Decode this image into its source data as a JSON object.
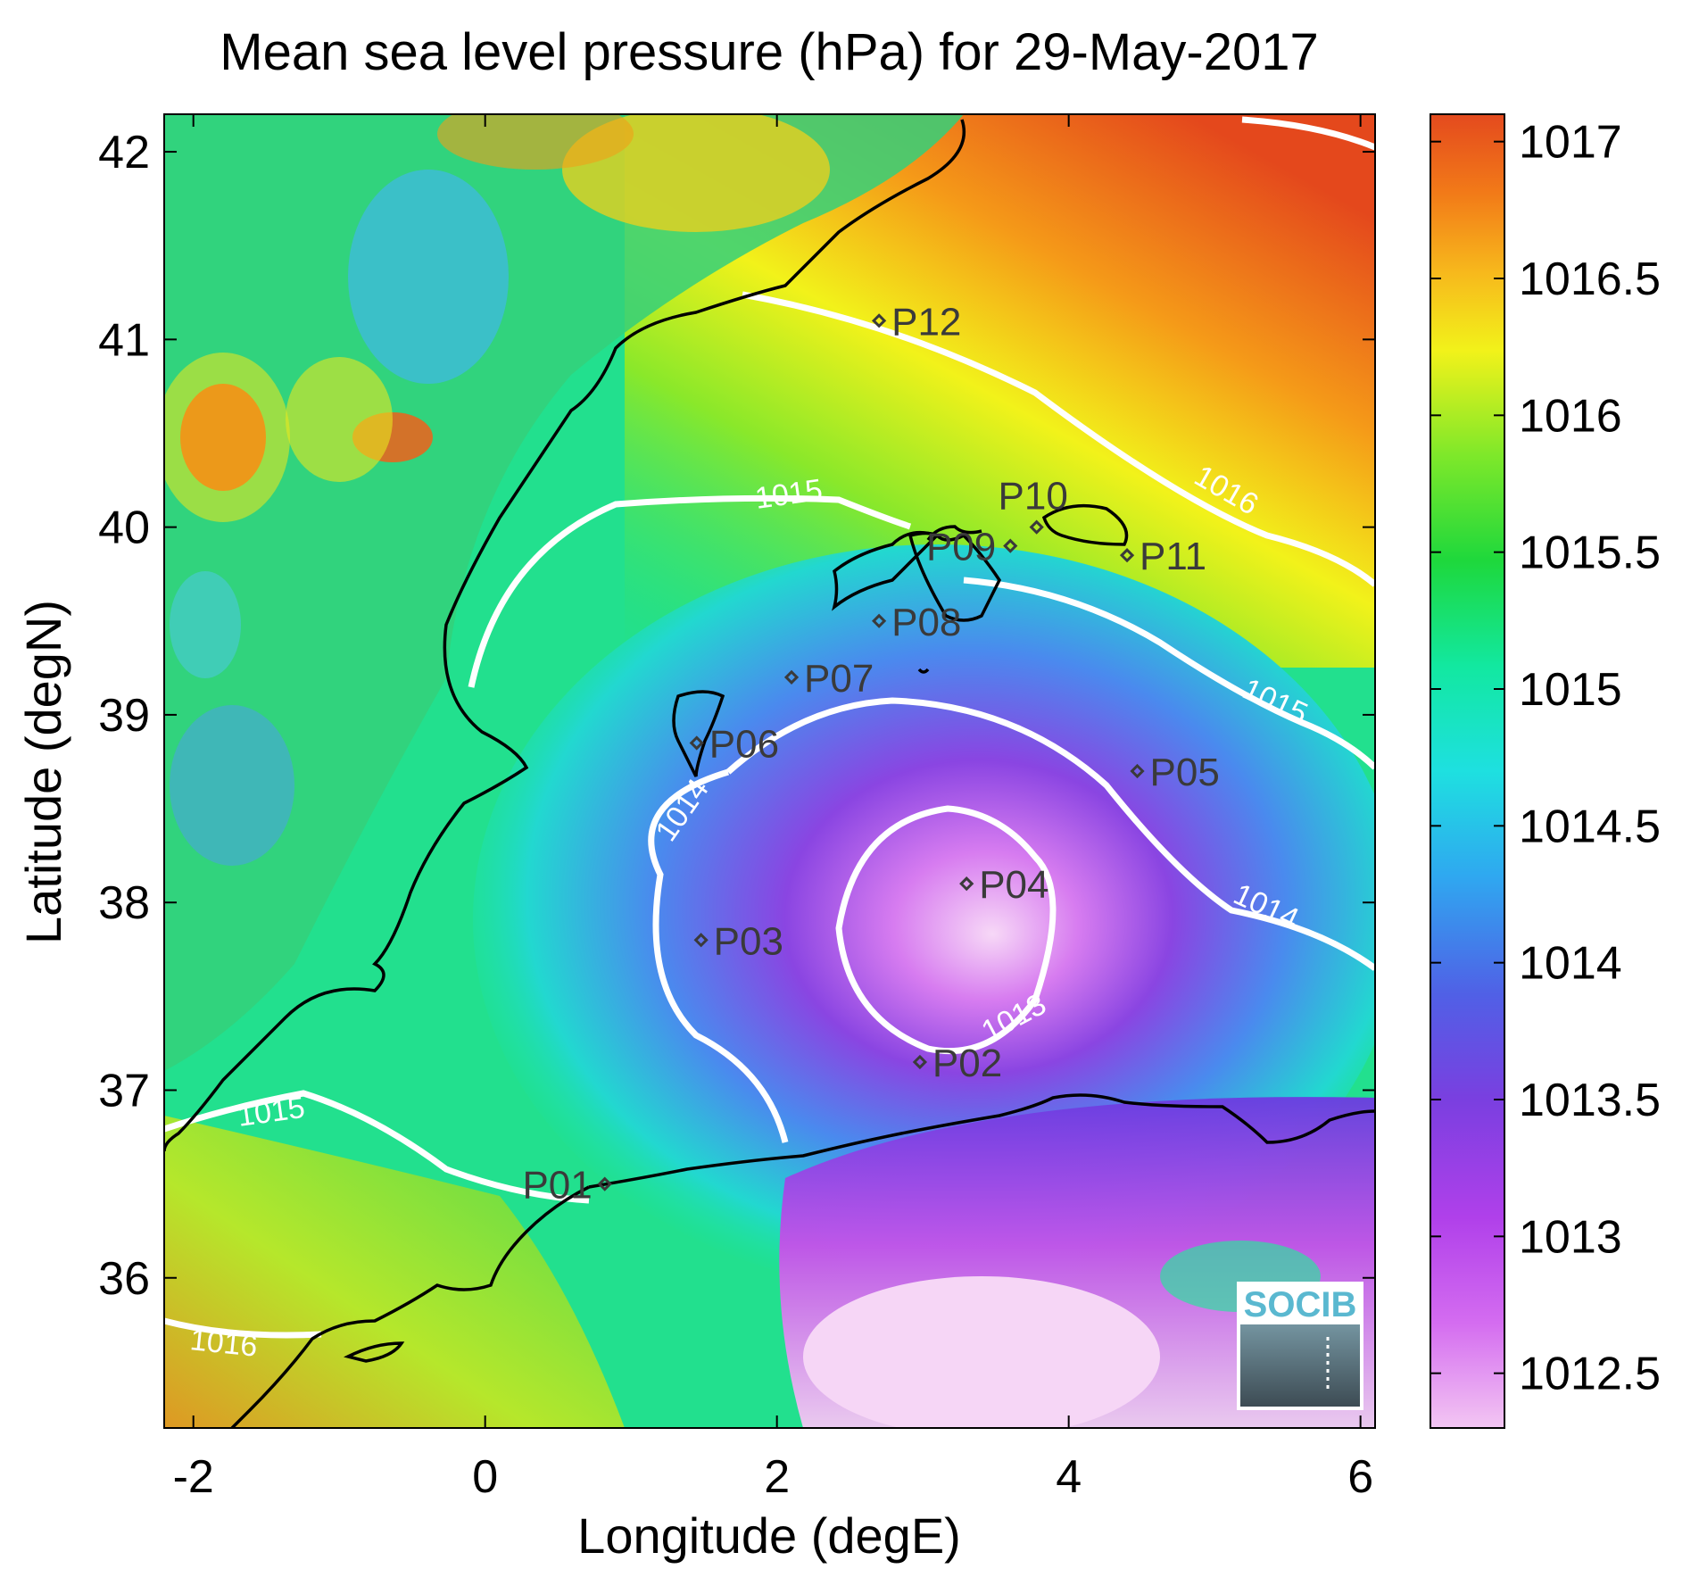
{
  "title": "Mean sea level pressure (hPa) for 29-May-2017",
  "xlabel": "Longitude (degE)",
  "ylabel": "Latitude (degN)",
  "logo_text": "SOCIB",
  "map": {
    "lon_range": [
      -2.2,
      6.1
    ],
    "lat_range": [
      35.2,
      42.2
    ],
    "x_ticks": [
      {
        "value": -2,
        "label": "-2"
      },
      {
        "value": 0,
        "label": "0"
      },
      {
        "value": 2,
        "label": "2"
      },
      {
        "value": 4,
        "label": "4"
      },
      {
        "value": 6,
        "label": "6"
      }
    ],
    "y_ticks": [
      {
        "value": 36,
        "label": "36"
      },
      {
        "value": 37,
        "label": "37"
      },
      {
        "value": 38,
        "label": "38"
      },
      {
        "value": 39,
        "label": "39"
      },
      {
        "value": 40,
        "label": "40"
      },
      {
        "value": 41,
        "label": "41"
      },
      {
        "value": 42,
        "label": "42"
      }
    ],
    "pressure_min_center": {
      "lon": 3.1,
      "lat": 37.8,
      "value": 1012.5
    },
    "pressure_high_corner": "north-east"
  },
  "colorbar": {
    "range": [
      1012.3,
      1017.1
    ],
    "ticks": [
      "1012.5",
      "1013",
      "1013.5",
      "1014",
      "1014.5",
      "1015",
      "1015.5",
      "1016",
      "1016.5",
      "1017"
    ],
    "colors": [
      "#f3c6f3",
      "#c84fe8",
      "#7a3fe0",
      "#4a6ee8",
      "#25c8f0",
      "#14e6b0",
      "#1ed83c",
      "#7ee82a",
      "#f2f21a",
      "#f7b81c",
      "#f58a18",
      "#ee5a16",
      "#e64a1e"
    ]
  },
  "contour_labels": [
    "1013",
    "1014",
    "1014",
    "1015",
    "1015",
    "1015",
    "1016",
    "1016"
  ],
  "stations": [
    {
      "name": "P01",
      "lon": 0.82,
      "lat": 36.5
    },
    {
      "name": "P02",
      "lon": 2.98,
      "lat": 37.15
    },
    {
      "name": "P03",
      "lon": 1.48,
      "lat": 37.8
    },
    {
      "name": "P04",
      "lon": 3.3,
      "lat": 38.1
    },
    {
      "name": "P05",
      "lon": 4.47,
      "lat": 38.7
    },
    {
      "name": "P06",
      "lon": 1.45,
      "lat": 38.85
    },
    {
      "name": "P07",
      "lon": 2.1,
      "lat": 39.2
    },
    {
      "name": "P08",
      "lon": 2.7,
      "lat": 39.5
    },
    {
      "name": "P09",
      "lon": 3.6,
      "lat": 39.9
    },
    {
      "name": "P10",
      "lon": 3.78,
      "lat": 40.0
    },
    {
      "name": "P11",
      "lon": 4.4,
      "lat": 39.85
    },
    {
      "name": "P12",
      "lon": 2.7,
      "lat": 41.1
    }
  ]
}
